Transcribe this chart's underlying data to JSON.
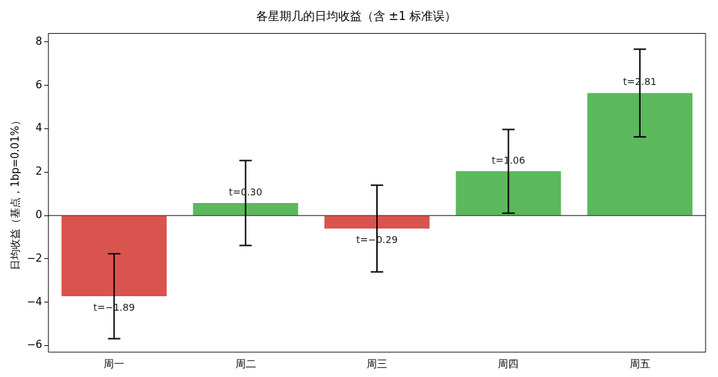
{
  "chart_data": {
    "type": "bar",
    "title": "各星期几的日均收益（含 ±1 标准误）",
    "ylabel": "日均收益（基点，1bp=0.01%）",
    "categories": [
      "周一",
      "周二",
      "周三",
      "周四",
      "周五"
    ],
    "values": [
      -3.72,
      0.58,
      -0.6,
      2.04,
      5.65
    ],
    "colors": [
      "#d9534f",
      "#5cb85c",
      "#d9534f",
      "#5cb85c",
      "#5cb85c"
    ],
    "errors": [
      1.96,
      1.96,
      2.0,
      1.93,
      2.02
    ],
    "annotations": [
      {
        "text": "t=−1.89",
        "x": "周一",
        "y": -3.72
      },
      {
        "text": "t=0.30",
        "x": "周二",
        "y": 0.58
      },
      {
        "text": "t=−0.29",
        "x": "周三",
        "y": -0.6
      },
      {
        "text": "t=1.06",
        "x": "周四",
        "y": 2.04
      },
      {
        "text": "t=2.81",
        "x": "周五",
        "y": 5.65
      }
    ],
    "ylim": [
      -6.3,
      8.4
    ],
    "yticks": [
      {
        "value": -6,
        "label": "−6"
      },
      {
        "value": -4,
        "label": "−4"
      },
      {
        "value": -2,
        "label": "−2"
      },
      0,
      2,
      4,
      6,
      8
    ],
    "ref_lines": [
      {
        "axis": "y",
        "value": 0,
        "color": "#000000"
      }
    ],
    "grid": false,
    "legend": false
  }
}
